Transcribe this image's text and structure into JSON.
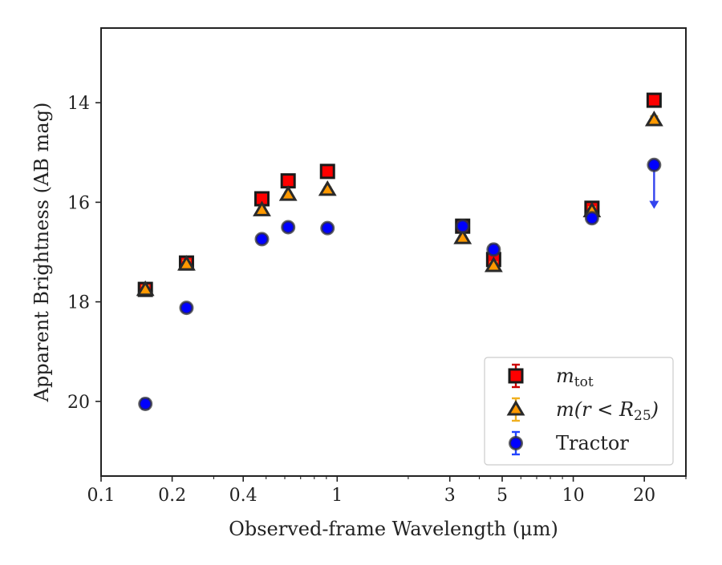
{
  "chart_data": {
    "type": "scatter",
    "title": "",
    "xlabel": "Observed-frame Wavelength (μm)",
    "ylabel": "Apparent Brightness (AB mag)",
    "xscale": "log",
    "xlim": [
      0.1,
      30
    ],
    "ylim": [
      21.5,
      12.5
    ],
    "y_inverted": true,
    "grid": false,
    "legend_position": "lower-right",
    "x_ticks": [
      {
        "value": 0.1,
        "label": "0.1"
      },
      {
        "value": 0.2,
        "label": "0.2"
      },
      {
        "value": 0.4,
        "label": "0.4"
      },
      {
        "value": 1,
        "label": "1"
      },
      {
        "value": 3,
        "label": "3"
      },
      {
        "value": 5,
        "label": "5"
      },
      {
        "value": 10,
        "label": "10"
      },
      {
        "value": 20,
        "label": "20"
      }
    ],
    "y_ticks": [
      {
        "value": 14,
        "label": "14"
      },
      {
        "value": 16,
        "label": "16"
      },
      {
        "value": 18,
        "label": "18"
      },
      {
        "value": 20,
        "label": "20"
      }
    ],
    "series": [
      {
        "name": "m_tot",
        "legend_main": "m",
        "legend_sub": "tot",
        "marker": "square",
        "color": "#ff0000",
        "errcolor": "#cc0000",
        "points": [
          {
            "x": 0.154,
            "y": 17.75,
            "err": 0.12
          },
          {
            "x": 0.23,
            "y": 17.22,
            "err": 0.1
          },
          {
            "x": 0.48,
            "y": 15.93,
            "err": 0.05
          },
          {
            "x": 0.62,
            "y": 15.57,
            "err": 0.05
          },
          {
            "x": 0.91,
            "y": 15.38,
            "err": 0.05
          },
          {
            "x": 3.4,
            "y": 16.48,
            "err": 0.05
          },
          {
            "x": 4.6,
            "y": 17.15,
            "err": 0.12
          },
          {
            "x": 12.0,
            "y": 16.12,
            "err": 0.1
          },
          {
            "x": 22.0,
            "y": 13.95,
            "err": 0.06
          }
        ]
      },
      {
        "name": "m(r < R25)",
        "legend_main": "m(r < R",
        "legend_sub": "25",
        "legend_tail": ")",
        "marker": "triangle",
        "color": "#ff9900",
        "errcolor": "#f0b020",
        "points": [
          {
            "x": 0.154,
            "y": 17.76,
            "err": 0.08
          },
          {
            "x": 0.23,
            "y": 17.25,
            "err": 0.08
          },
          {
            "x": 0.48,
            "y": 16.16,
            "err": 0.05
          },
          {
            "x": 0.62,
            "y": 15.85,
            "err": 0.05
          },
          {
            "x": 0.91,
            "y": 15.75,
            "err": 0.05
          },
          {
            "x": 3.4,
            "y": 16.72,
            "err": 0.05
          },
          {
            "x": 4.6,
            "y": 17.28,
            "err": 0.08
          },
          {
            "x": 12.0,
            "y": 16.18,
            "err": 0.08
          },
          {
            "x": 22.0,
            "y": 14.35,
            "err": 0.08
          }
        ]
      },
      {
        "name": "Tractor",
        "marker": "circle",
        "color": "#0000ff",
        "errcolor": "#2244ff",
        "points": [
          {
            "x": 0.154,
            "y": 20.05,
            "err": 0.1
          },
          {
            "x": 0.23,
            "y": 18.12,
            "err": 0.08
          },
          {
            "x": 0.48,
            "y": 16.74,
            "err": 0.05
          },
          {
            "x": 0.62,
            "y": 16.5,
            "err": 0.05
          },
          {
            "x": 0.91,
            "y": 16.52,
            "err": 0.05
          },
          {
            "x": 3.4,
            "y": 16.48,
            "err": 0.05
          },
          {
            "x": 4.6,
            "y": 16.95,
            "err": 0.1
          },
          {
            "x": 12.0,
            "y": 16.32,
            "err": 0.08
          },
          {
            "x": 22.0,
            "y": 15.25,
            "err": 0.05,
            "upper_limit_arrow_to": 16.1
          }
        ]
      }
    ]
  }
}
